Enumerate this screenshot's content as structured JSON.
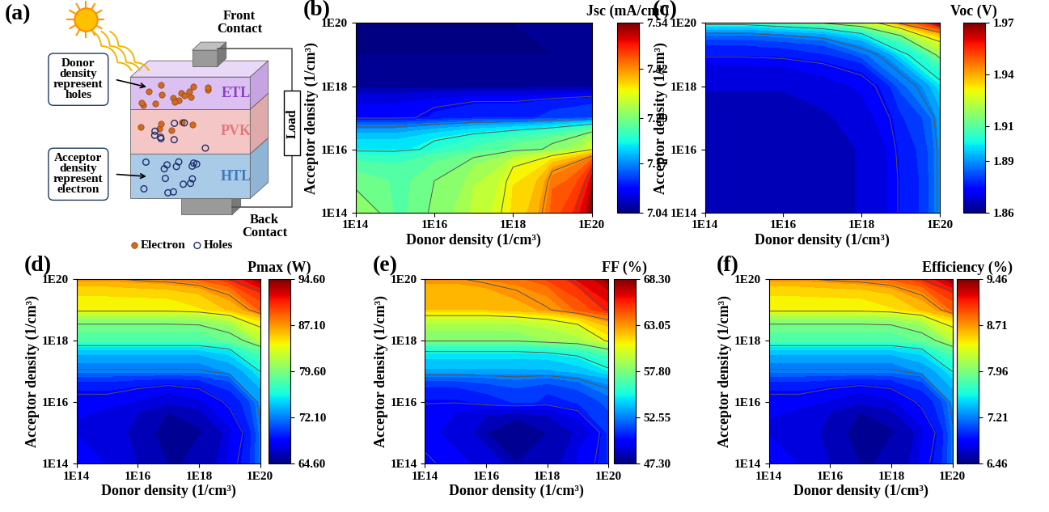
{
  "diagram": {
    "panel_label": "(a)",
    "layers": [
      "ETL",
      "PVK",
      "HTL"
    ],
    "front_contact": "Front Contact",
    "back_contact": "Back Contact",
    "load": "Load",
    "callouts": [
      "Donor density represent holes",
      "Acceptor density represent electron"
    ],
    "markers_key": {
      "electron": "Electron",
      "holes": "Holes"
    }
  },
  "chart_data": [
    {
      "type": "contour",
      "panel_label": "(b)",
      "log": true,
      "x_label": "Donor density (1/cm³)",
      "y_label": "Acceptor density (1/cm³)",
      "x": [
        100000000000000.0,
        1000000000000000.0,
        1e+16,
        1e+17,
        1e+18,
        1e+19,
        1e+20
      ],
      "y": [
        100000000000000.0,
        1000000000000000.0,
        1e+16,
        1e+17,
        1e+18,
        1e+19,
        1e+20
      ],
      "z": [
        [
          7.3,
          7.27,
          7.3,
          7.33,
          7.38,
          7.45,
          7.54
        ],
        [
          7.28,
          7.27,
          7.29,
          7.32,
          7.37,
          7.43,
          7.5
        ],
        [
          7.22,
          7.22,
          7.24,
          7.26,
          7.28,
          7.3,
          7.35
        ],
        [
          7.1,
          7.1,
          7.11,
          7.12,
          7.12,
          7.13,
          7.14
        ],
        [
          7.05,
          7.05,
          7.05,
          7.05,
          7.05,
          7.05,
          7.05
        ],
        [
          7.04,
          7.04,
          7.04,
          7.04,
          7.04,
          7.04,
          7.04
        ],
        [
          7.04,
          7.04,
          7.04,
          7.04,
          7.04,
          7.05,
          7.05
        ]
      ],
      "xlim": [
        100000000000000.0,
        1e+20
      ],
      "ylim": [
        100000000000000.0,
        1e+20
      ],
      "xticks": [
        {
          "value": 100000000000000.0,
          "label": "1E14"
        },
        {
          "value": 1e+16,
          "label": "1E16"
        },
        {
          "value": 1e+18,
          "label": "1E18"
        },
        {
          "value": 1e+20,
          "label": "1E20"
        }
      ],
      "yticks": [
        {
          "value": 100000000000000.0,
          "label": "1E14"
        },
        {
          "value": 1e+16,
          "label": "1E16"
        },
        {
          "value": 1e+18,
          "label": "1E18"
        },
        {
          "value": 1e+20,
          "label": "1E20"
        }
      ],
      "colorbar": {
        "label": "Jsc (mA/cm²)",
        "range": [
          7.04,
          7.54
        ],
        "ticks": [
          7.04,
          7.17,
          7.29,
          7.42,
          7.54
        ]
      }
    },
    {
      "type": "contour",
      "panel_label": "(c)",
      "log": true,
      "x_label": "Donor density (1/cm³)",
      "y_label": "Acceptor density (1/cm³)",
      "x": [
        100000000000000.0,
        1000000000000000.0,
        1e+16,
        1e+17,
        1e+18,
        1e+19,
        1e+20
      ],
      "y": [
        100000000000000.0,
        1000000000000000.0,
        1e+16,
        1e+17,
        1e+18,
        1e+19,
        1e+20
      ],
      "z": [
        [
          1.865,
          1.865,
          1.865,
          1.866,
          1.868,
          1.875,
          1.89
        ],
        [
          1.865,
          1.865,
          1.865,
          1.866,
          1.868,
          1.875,
          1.89
        ],
        [
          1.865,
          1.865,
          1.865,
          1.866,
          1.868,
          1.876,
          1.89
        ],
        [
          1.866,
          1.866,
          1.866,
          1.867,
          1.87,
          1.878,
          1.892
        ],
        [
          1.868,
          1.868,
          1.868,
          1.87,
          1.872,
          1.885,
          1.9
        ],
        [
          1.875,
          1.875,
          1.876,
          1.878,
          1.885,
          1.9,
          1.92
        ],
        [
          1.905,
          1.905,
          1.91,
          1.915,
          1.925,
          1.945,
          1.97
        ]
      ],
      "xlim": [
        100000000000000.0,
        1e+20
      ],
      "ylim": [
        100000000000000.0,
        1e+20
      ],
      "xticks": [
        {
          "value": 100000000000000.0,
          "label": "1E14"
        },
        {
          "value": 1e+16,
          "label": "1E16"
        },
        {
          "value": 1e+18,
          "label": "1E18"
        },
        {
          "value": 1e+20,
          "label": "1E20"
        }
      ],
      "yticks": [
        {
          "value": 100000000000000.0,
          "label": "1E14"
        },
        {
          "value": 1e+16,
          "label": "1E16"
        },
        {
          "value": 1e+18,
          "label": "1E18"
        },
        {
          "value": 1e+20,
          "label": "1E20"
        }
      ],
      "colorbar": {
        "label": "Voc (V)",
        "range": [
          1.86,
          1.97
        ],
        "ticks": [
          1.86,
          1.89,
          1.91,
          1.94,
          1.97
        ]
      }
    },
    {
      "type": "contour",
      "panel_label": "(d)",
      "log": true,
      "x_label": "Donor density (1/cm³)",
      "y_label": "Acceptor density (1/cm³)",
      "x": [
        100000000000000.0,
        1000000000000000.0,
        1e+16,
        1e+17,
        1e+18,
        1e+19,
        1e+20
      ],
      "y": [
        100000000000000.0,
        1000000000000000.0,
        1e+16,
        1e+17,
        1e+18,
        1e+19,
        1e+20
      ],
      "z": [
        [
          68.0,
          67.5,
          66.5,
          65.5,
          66.0,
          68.0,
          72.0
        ],
        [
          67.5,
          67.0,
          66.0,
          64.6,
          65.5,
          67.5,
          72.0
        ],
        [
          68.0,
          68.0,
          67.5,
          67.0,
          67.5,
          69.0,
          73.0
        ],
        [
          72.0,
          72.0,
          72.0,
          72.0,
          72.0,
          73.0,
          76.0
        ],
        [
          78.0,
          78.0,
          78.0,
          78.0,
          78.0,
          79.0,
          82.0
        ],
        [
          84.0,
          84.0,
          84.0,
          84.0,
          84.5,
          86.0,
          89.0
        ],
        [
          87.0,
          87.0,
          87.5,
          88.0,
          89.0,
          91.0,
          94.6
        ]
      ],
      "xlim": [
        100000000000000.0,
        1e+20
      ],
      "ylim": [
        100000000000000.0,
        1e+20
      ],
      "xticks": [
        {
          "value": 100000000000000.0,
          "label": "1E14"
        },
        {
          "value": 1e+16,
          "label": "1E16"
        },
        {
          "value": 1e+18,
          "label": "1E18"
        },
        {
          "value": 1e+20,
          "label": "1E20"
        }
      ],
      "yticks": [
        {
          "value": 100000000000000.0,
          "label": "1E14"
        },
        {
          "value": 1e+16,
          "label": "1E16"
        },
        {
          "value": 1e+18,
          "label": "1E18"
        },
        {
          "value": 1e+20,
          "label": "1E20"
        }
      ],
      "colorbar": {
        "label": "Pmax (W)",
        "range": [
          64.6,
          94.6
        ],
        "ticks": [
          {
            "value": 64.6,
            "label": "64.60"
          },
          {
            "value": 72.1,
            "label": "72.10"
          },
          {
            "value": 79.6,
            "label": "79.60"
          },
          {
            "value": 87.1,
            "label": "87.10"
          },
          {
            "value": 94.6,
            "label": "94.60"
          }
        ]
      }
    },
    {
      "type": "contour",
      "panel_label": "(e)",
      "log": true,
      "x_label": "Donor density (1/cm³)",
      "y_label": "Acceptor density (1/cm³)",
      "x": [
        100000000000000.0,
        1000000000000000.0,
        1e+16,
        1e+17,
        1e+18,
        1e+19,
        1e+20
      ],
      "y": [
        100000000000000.0,
        1000000000000000.0,
        1e+16,
        1e+17,
        1e+18,
        1e+19,
        1e+20
      ],
      "z": [
        [
          50.0,
          49.5,
          49.0,
          48.0,
          48.5,
          49.5,
          51.0
        ],
        [
          49.5,
          49.0,
          48.0,
          47.3,
          48.0,
          49.0,
          51.0
        ],
        [
          50.0,
          50.0,
          50.5,
          51.0,
          50.5,
          51.0,
          52.0
        ],
        [
          53.5,
          53.5,
          53.5,
          53.5,
          53.5,
          54.0,
          55.0
        ],
        [
          58.0,
          58.0,
          58.0,
          58.0,
          58.5,
          59.0,
          61.0
        ],
        [
          62.0,
          62.0,
          62.0,
          62.5,
          63.0,
          64.5,
          66.0
        ],
        [
          63.0,
          63.0,
          63.5,
          64.0,
          65.0,
          66.5,
          68.3
        ]
      ],
      "xlim": [
        100000000000000.0,
        1e+20
      ],
      "ylim": [
        100000000000000.0,
        1e+20
      ],
      "xticks": [
        {
          "value": 100000000000000.0,
          "label": "1E14"
        },
        {
          "value": 1e+16,
          "label": "1E16"
        },
        {
          "value": 1e+18,
          "label": "1E18"
        },
        {
          "value": 1e+20,
          "label": "1E20"
        }
      ],
      "yticks": [
        {
          "value": 100000000000000.0,
          "label": "1E14"
        },
        {
          "value": 1e+16,
          "label": "1E16"
        },
        {
          "value": 1e+18,
          "label": "1E18"
        },
        {
          "value": 1e+20,
          "label": "1E20"
        }
      ],
      "colorbar": {
        "label": "FF (%)",
        "range": [
          47.3,
          68.3
        ],
        "ticks": [
          {
            "value": 47.3,
            "label": "47.30"
          },
          52.55,
          {
            "value": 57.8,
            "label": "57.80"
          },
          63.05,
          {
            "value": 68.3,
            "label": "68.30"
          }
        ]
      }
    },
    {
      "type": "contour",
      "panel_label": "(f)",
      "log": true,
      "x_label": "Donor density (1/cm³)",
      "y_label": "Acceptor density (1/cm³)",
      "x": [
        100000000000000.0,
        1000000000000000.0,
        1e+16,
        1e+17,
        1e+18,
        1e+19,
        1e+20
      ],
      "y": [
        100000000000000.0,
        1000000000000000.0,
        1e+16,
        1e+17,
        1e+18,
        1e+19,
        1e+20
      ],
      "z": [
        [
          6.8,
          6.75,
          6.65,
          6.55,
          6.6,
          6.8,
          7.2
        ],
        [
          6.75,
          6.7,
          6.6,
          6.46,
          6.55,
          6.75,
          7.2
        ],
        [
          6.8,
          6.8,
          6.75,
          6.7,
          6.75,
          6.9,
          7.3
        ],
        [
          7.2,
          7.2,
          7.2,
          7.2,
          7.2,
          7.3,
          7.6
        ],
        [
          7.8,
          7.8,
          7.8,
          7.8,
          7.8,
          7.9,
          8.2
        ],
        [
          8.4,
          8.4,
          8.4,
          8.4,
          8.45,
          8.6,
          8.9
        ],
        [
          8.7,
          8.7,
          8.75,
          8.8,
          8.9,
          9.1,
          9.46
        ]
      ],
      "xlim": [
        100000000000000.0,
        1e+20
      ],
      "ylim": [
        100000000000000.0,
        1e+20
      ],
      "xticks": [
        {
          "value": 100000000000000.0,
          "label": "1E14"
        },
        {
          "value": 1e+16,
          "label": "1E16"
        },
        {
          "value": 1e+18,
          "label": "1E18"
        },
        {
          "value": 1e+20,
          "label": "1E20"
        }
      ],
      "yticks": [
        {
          "value": 100000000000000.0,
          "label": "1E14"
        },
        {
          "value": 1e+16,
          "label": "1E16"
        },
        {
          "value": 1e+18,
          "label": "1E18"
        },
        {
          "value": 1e+20,
          "label": "1E20"
        }
      ],
      "colorbar": {
        "label": "Efficiency (%)",
        "range": [
          6.46,
          9.46
        ],
        "ticks": [
          6.46,
          7.21,
          7.96,
          8.71,
          9.46
        ]
      }
    }
  ]
}
